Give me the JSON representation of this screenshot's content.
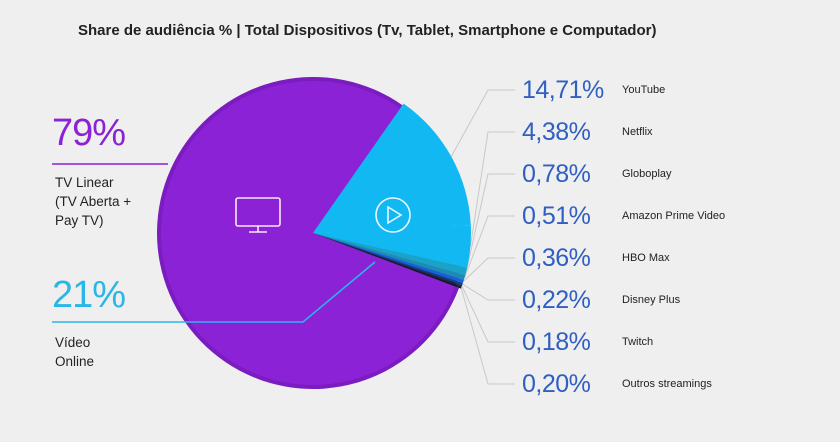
{
  "title": "Share de audiência % | Total Dispositivos (Tv, Tablet, Smartphone e Computador)",
  "colors": {
    "linear": "#8b22d6",
    "linear_edge": "#7a1cbf",
    "online": "#12b8f2",
    "accent_text_linear": "#8b22d6",
    "accent_text_online": "#29b6e8",
    "legend_value": "#2f5fc2",
    "leader": "#c8c8c8"
  },
  "main_labels": {
    "linear": {
      "pct": "79%",
      "lines": [
        "TV Linear",
        "(TV Aberta +",
        "Pay TV)"
      ]
    },
    "online": {
      "pct": "21%",
      "lines": [
        "Vídeo",
        "Online"
      ]
    }
  },
  "icons": {
    "linear": "tv-icon",
    "online": "play-icon"
  },
  "chart_data": {
    "type": "pie",
    "title": "Share de audiência % | Total Dispositivos (Tv, Tablet, Smartphone e Computador)",
    "main_split": [
      {
        "name": "TV Linear (TV Aberta + Pay TV)",
        "value": 79,
        "label": "79%"
      },
      {
        "name": "Vídeo Online",
        "value": 21,
        "label": "21%"
      }
    ],
    "online_breakdown": [
      {
        "name": "YouTube",
        "value": 14.71,
        "label": "14,71%",
        "color": "#12b8f2"
      },
      {
        "name": "Netflix",
        "value": 4.38,
        "label": "4,38%",
        "color": "#12b8f2"
      },
      {
        "name": "Globoplay",
        "value": 0.78,
        "label": "0,78%",
        "color": "#1aa3c8"
      },
      {
        "name": "Amazon Prime Video",
        "value": 0.51,
        "label": "0,51%",
        "color": "#1f8bb3"
      },
      {
        "name": "HBO Max",
        "value": 0.36,
        "label": "0,36%",
        "color": "#1860d8"
      },
      {
        "name": "Disney Plus",
        "value": 0.22,
        "label": "0,22%",
        "color": "#0d3f8a"
      },
      {
        "name": "Twitch",
        "value": 0.18,
        "label": "0,18%",
        "color": "#2b1f3d"
      },
      {
        "name": "Outros streamings",
        "value": 0.2,
        "label": "0,20%",
        "color": "#0b1a2e"
      }
    ]
  }
}
